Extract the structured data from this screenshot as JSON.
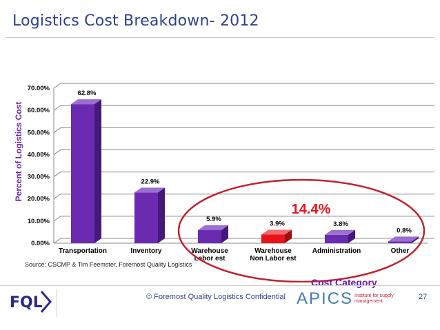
{
  "slide": {
    "title": "Logistics Cost Breakdown- 2012",
    "source": "Source: CSCMP & Tim Feemster, Foremost Quality Logistics",
    "highlight_total": "14.4%",
    "footer": "© Foremost Quality Logistics Confidential",
    "page_number": "27",
    "logo_text": "FQL",
    "partner_apics": "APICS",
    "partner_ism": "Institute for supply management"
  },
  "colors": {
    "title": "#2e3f8f",
    "bar_default": "#6a2bb0",
    "bar_highlight": "#e8141b",
    "axis_title": "#6a1fa8",
    "ellipse": "#c0222b"
  },
  "chart_data": {
    "type": "bar",
    "categories": [
      "Transportation",
      "Inventory",
      "Warehouse Labor est",
      "Warehouse Non Labor est",
      "Administration",
      "Other"
    ],
    "category_lines": [
      [
        "Transportation"
      ],
      [
        "Inventory"
      ],
      [
        "Warehouse",
        "Labor est"
      ],
      [
        "Warehouse",
        "Non Labor est"
      ],
      [
        "Administration"
      ],
      [
        "Other"
      ]
    ],
    "values": [
      62.8,
      22.9,
      5.9,
      3.9,
      3.8,
      0.8
    ],
    "data_labels": [
      "62.8%",
      "22.9%",
      "5.9%",
      "3.9%",
      "3.8%",
      "0.8%"
    ],
    "highlight_index": 3,
    "ylabel": "Percent of Logistics Cost",
    "xlabel": "Cost Category",
    "ylim": [
      0,
      70
    ],
    "yticks": [
      0,
      10,
      20,
      30,
      40,
      50,
      60,
      70
    ],
    "ytick_labels": [
      "0.00%",
      "10.00%",
      "20.00%",
      "30.00%",
      "40.00%",
      "50.00%",
      "60.00%",
      "70.00%"
    ],
    "grid": true,
    "style": "3d-bar"
  }
}
